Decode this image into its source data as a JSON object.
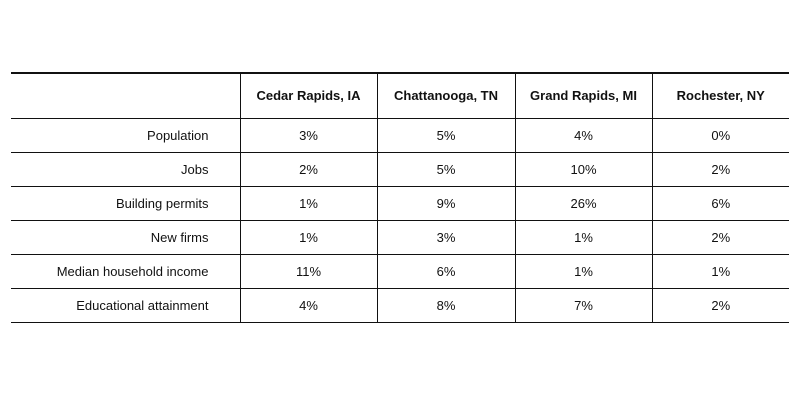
{
  "chart_data": {
    "type": "table",
    "columns": [
      "",
      "Cedar Rapids, IA",
      "Chattanooga, TN",
      "Grand Rapids, MI",
      "Rochester, NY"
    ],
    "rows": [
      {
        "label": "Population",
        "values": [
          "3%",
          "5%",
          "4%",
          "0%"
        ]
      },
      {
        "label": "Jobs",
        "values": [
          "2%",
          "5%",
          "10%",
          "2%"
        ]
      },
      {
        "label": "Building permits",
        "values": [
          "1%",
          "9%",
          "26%",
          "6%"
        ]
      },
      {
        "label": "New firms",
        "values": [
          "1%",
          "3%",
          "1%",
          "2%"
        ]
      },
      {
        "label": "Median household income",
        "values": [
          "11%",
          "6%",
          "1%",
          "1%"
        ]
      },
      {
        "label": "Educational attainment",
        "values": [
          "4%",
          "8%",
          "7%",
          "2%"
        ]
      }
    ]
  }
}
